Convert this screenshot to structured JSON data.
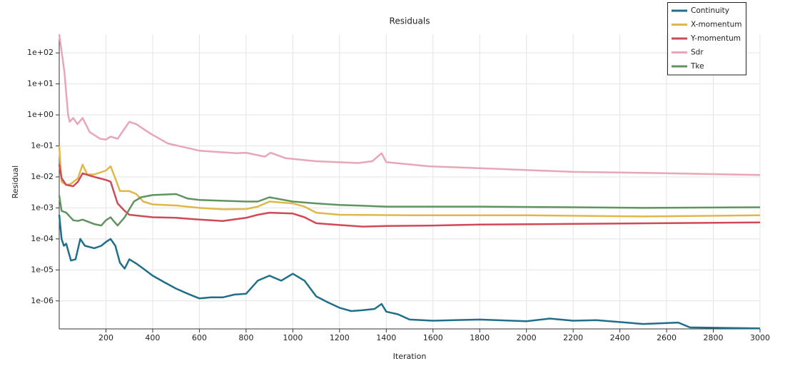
{
  "chart_data": {
    "type": "line",
    "title": "Residuals",
    "xlabel": "Iteration",
    "ylabel": "Residual",
    "xlim": [
      0,
      3000
    ],
    "xticks": [
      200,
      400,
      600,
      800,
      1000,
      1200,
      1400,
      1600,
      1800,
      2000,
      2200,
      2400,
      2600,
      2800,
      3000
    ],
    "ylim": [
      1.25e-07,
      400
    ],
    "ylog": true,
    "grid": true,
    "legend": "upper right",
    "yticks": [
      {
        "value": 1e-06,
        "label": "1e-06"
      },
      {
        "value": 1e-05,
        "label": "1e-05"
      },
      {
        "value": 0.0001,
        "label": "1e-04"
      },
      {
        "value": 0.001,
        "label": "1e-03"
      },
      {
        "value": 0.01,
        "label": "1e-02"
      },
      {
        "value": 0.1,
        "label": "1e-01"
      },
      {
        "value": 1,
        "label": "1e+00"
      },
      {
        "value": 10,
        "label": "1e+01"
      },
      {
        "value": 100,
        "label": "1e+02"
      }
    ],
    "series": [
      {
        "name": "Continuity",
        "color": "#1f6f8b",
        "x": [
          0,
          10,
          20,
          30,
          50,
          70,
          90,
          110,
          150,
          180,
          200,
          220,
          240,
          260,
          280,
          300,
          330,
          360,
          400,
          450,
          500,
          550,
          600,
          650,
          700,
          750,
          800,
          850,
          900,
          950,
          1000,
          1050,
          1100,
          1150,
          1200,
          1250,
          1300,
          1350,
          1380,
          1400,
          1450,
          1500,
          1600,
          1800,
          2000,
          2100,
          2200,
          2300,
          2500,
          2650,
          2700,
          3000
        ],
        "values": [
          0.0006,
          0.0001,
          6e-05,
          7e-05,
          2e-05,
          2.2e-05,
          0.0001,
          6e-05,
          5e-05,
          6e-05,
          8e-05,
          0.0001,
          6e-05,
          1.7e-05,
          1.1e-05,
          2.2e-05,
          1.6e-05,
          1.1e-05,
          6.5e-06,
          4e-06,
          2.5e-06,
          1.7e-06,
          1.2e-06,
          1.3e-06,
          1.3e-06,
          1.6e-06,
          1.7e-06,
          4.5e-06,
          6.5e-06,
          4.5e-06,
          7.5e-06,
          4.5e-06,
          1.4e-06,
          9e-07,
          6e-07,
          4.7e-07,
          5e-07,
          5.5e-07,
          8e-07,
          4.5e-07,
          3.7e-07,
          2.5e-07,
          2.3e-07,
          2.5e-07,
          2.2e-07,
          2.7e-07,
          2.3e-07,
          2.4e-07,
          1.8e-07,
          2e-07,
          1.4e-07,
          1.3e-07
        ]
      },
      {
        "name": "X-momentum",
        "color": "#e0b84a",
        "x": [
          0,
          10,
          30,
          50,
          80,
          100,
          120,
          150,
          200,
          220,
          240,
          260,
          300,
          330,
          360,
          400,
          500,
          600,
          700,
          800,
          850,
          900,
          1000,
          1050,
          1100,
          1200,
          1500,
          2000,
          2500,
          3000
        ],
        "values": [
          0.1,
          0.007,
          0.0055,
          0.006,
          0.009,
          0.025,
          0.012,
          0.012,
          0.016,
          0.022,
          0.009,
          0.0035,
          0.0035,
          0.0028,
          0.0016,
          0.0013,
          0.0012,
          0.001,
          0.0009,
          0.00092,
          0.0011,
          0.0016,
          0.0014,
          0.0011,
          0.0007,
          0.0006,
          0.00058,
          0.00058,
          0.00053,
          0.00058
        ]
      },
      {
        "name": "Y-momentum",
        "color": "#d04a55",
        "x": [
          0,
          10,
          30,
          60,
          80,
          100,
          150,
          200,
          220,
          250,
          280,
          300,
          400,
          500,
          600,
          700,
          800,
          850,
          900,
          1000,
          1050,
          1100,
          1200,
          1300,
          1400,
          1600,
          1800,
          3000
        ],
        "values": [
          0.025,
          0.009,
          0.0055,
          0.005,
          0.007,
          0.013,
          0.01,
          0.008,
          0.007,
          0.0014,
          0.0008,
          0.0006,
          0.0005,
          0.00048,
          0.00042,
          0.00038,
          0.00048,
          0.0006,
          0.0007,
          0.00066,
          0.0005,
          0.00032,
          0.00028,
          0.00025,
          0.00026,
          0.00027,
          0.00029,
          0.00034
        ]
      },
      {
        "name": "Sdr",
        "color": "#e8a6b8",
        "x": [
          0,
          22,
          38,
          45,
          60,
          78,
          100,
          130,
          175,
          200,
          220,
          250,
          300,
          330,
          390,
          465,
          600,
          760,
          800,
          880,
          905,
          970,
          1100,
          1280,
          1340,
          1380,
          1400,
          1584,
          1890,
          2200,
          2500,
          3000
        ],
        "values": [
          400,
          25,
          1.0,
          0.6,
          0.8,
          0.5,
          0.8,
          0.28,
          0.17,
          0.16,
          0.2,
          0.17,
          0.6,
          0.5,
          0.25,
          0.12,
          0.07,
          0.058,
          0.06,
          0.045,
          0.06,
          0.04,
          0.032,
          0.028,
          0.032,
          0.058,
          0.03,
          0.022,
          0.018,
          0.0145,
          0.0135,
          0.0115
        ]
      },
      {
        "name": "Tke",
        "color": "#5f9460",
        "x": [
          0,
          10,
          30,
          60,
          80,
          100,
          150,
          180,
          200,
          220,
          230,
          250,
          280,
          300,
          320,
          350,
          400,
          500,
          550,
          600,
          700,
          800,
          850,
          900,
          1000,
          1100,
          1200,
          1400,
          1800,
          2200,
          2500,
          3000
        ],
        "values": [
          0.0025,
          0.0008,
          0.0007,
          0.0004,
          0.00038,
          0.00042,
          0.0003,
          0.00027,
          0.0004,
          0.0005,
          0.0004,
          0.00027,
          0.0005,
          0.0009,
          0.0016,
          0.0022,
          0.0026,
          0.0028,
          0.002,
          0.0018,
          0.0017,
          0.0016,
          0.0016,
          0.0022,
          0.0016,
          0.0014,
          0.00125,
          0.0011,
          0.0011,
          0.00105,
          0.001,
          0.00105
        ]
      }
    ]
  }
}
